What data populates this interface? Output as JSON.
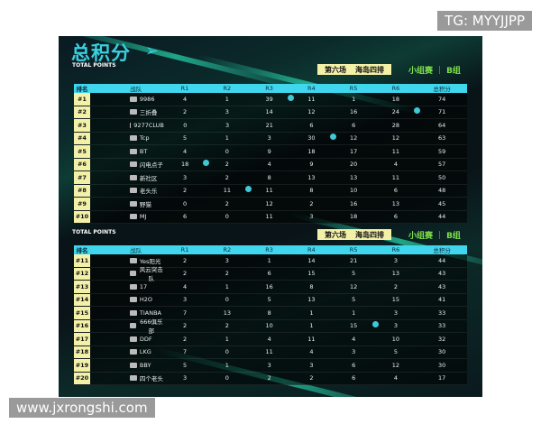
{
  "watermarks": {
    "top": "TG: MYYJJPP",
    "bottom": "www.jxrongshi.com"
  },
  "title": "总积分",
  "subtitle": "TOTAL POINTS",
  "match": {
    "round": "第六场",
    "map": "海岛四排",
    "stage": "小组赛",
    "group": "B组"
  },
  "columns": [
    "排名",
    "战队",
    "R1",
    "R2",
    "R3",
    "R4",
    "R5",
    "R6",
    "总积分"
  ],
  "accent": "#3fd6ee",
  "rank_bg": "#f3f0a8",
  "winner_icon": "chicken-dinner-icon",
  "tables": [
    {
      "rows": [
        {
          "rank": "#1",
          "team": "9986",
          "r": [
            "4",
            "1",
            "39",
            "11",
            "1",
            "18"
          ],
          "total": "74",
          "win": 2
        },
        {
          "rank": "#2",
          "team": "三折叠",
          "r": [
            "2",
            "3",
            "14",
            "12",
            "16",
            "24"
          ],
          "total": "71",
          "win": 5
        },
        {
          "rank": "#3",
          "team": "9277CLUB",
          "r": [
            "0",
            "3",
            "21",
            "6",
            "6",
            "28"
          ],
          "total": "64"
        },
        {
          "rank": "#4",
          "team": "Tcp",
          "r": [
            "5",
            "1",
            "3",
            "30",
            "12",
            "12"
          ],
          "total": "63",
          "win": 3
        },
        {
          "rank": "#5",
          "team": "BT",
          "r": [
            "4",
            "0",
            "9",
            "18",
            "17",
            "11"
          ],
          "total": "59"
        },
        {
          "rank": "#6",
          "team": "闪电点子",
          "r": [
            "18",
            "2",
            "4",
            "9",
            "20",
            "4"
          ],
          "total": "57",
          "win": 0
        },
        {
          "rank": "#7",
          "team": "新社区",
          "r": [
            "3",
            "2",
            "8",
            "13",
            "13",
            "11"
          ],
          "total": "50"
        },
        {
          "rank": "#8",
          "team": "老头乐",
          "r": [
            "2",
            "11",
            "11",
            "8",
            "10",
            "6"
          ],
          "total": "48",
          "win": 1
        },
        {
          "rank": "#9",
          "team": "野猫",
          "r": [
            "0",
            "2",
            "12",
            "2",
            "16",
            "13"
          ],
          "total": "45"
        },
        {
          "rank": "#10",
          "team": "MJ",
          "r": [
            "6",
            "0",
            "11",
            "3",
            "18",
            "6"
          ],
          "total": "44"
        }
      ]
    },
    {
      "rows": [
        {
          "rank": "#11",
          "team": "Yes阳光",
          "r": [
            "2",
            "3",
            "1",
            "14",
            "21",
            "3"
          ],
          "total": "44"
        },
        {
          "rank": "#12",
          "team": "风云突击队",
          "r": [
            "2",
            "2",
            "6",
            "15",
            "5",
            "13"
          ],
          "total": "43"
        },
        {
          "rank": "#13",
          "team": "17",
          "r": [
            "4",
            "1",
            "16",
            "8",
            "12",
            "2"
          ],
          "total": "43"
        },
        {
          "rank": "#14",
          "team": "H2O",
          "r": [
            "3",
            "0",
            "5",
            "13",
            "5",
            "15"
          ],
          "total": "41"
        },
        {
          "rank": "#15",
          "team": "TIANBA",
          "r": [
            "7",
            "13",
            "8",
            "1",
            "1",
            "3"
          ],
          "total": "33"
        },
        {
          "rank": "#16",
          "team": "666俱乐部",
          "r": [
            "2",
            "2",
            "10",
            "1",
            "15",
            "3"
          ],
          "total": "33",
          "win": 4
        },
        {
          "rank": "#17",
          "team": "DDF",
          "r": [
            "2",
            "1",
            "4",
            "11",
            "4",
            "10"
          ],
          "total": "32"
        },
        {
          "rank": "#18",
          "team": "LKG",
          "r": [
            "7",
            "0",
            "11",
            "4",
            "3",
            "5"
          ],
          "total": "30"
        },
        {
          "rank": "#19",
          "team": "BBY",
          "r": [
            "5",
            "1",
            "3",
            "3",
            "6",
            "12"
          ],
          "total": "30"
        },
        {
          "rank": "#20",
          "team": "四个老头",
          "r": [
            "3",
            "0",
            "2",
            "2",
            "6",
            "4"
          ],
          "total": "17"
        }
      ]
    }
  ]
}
